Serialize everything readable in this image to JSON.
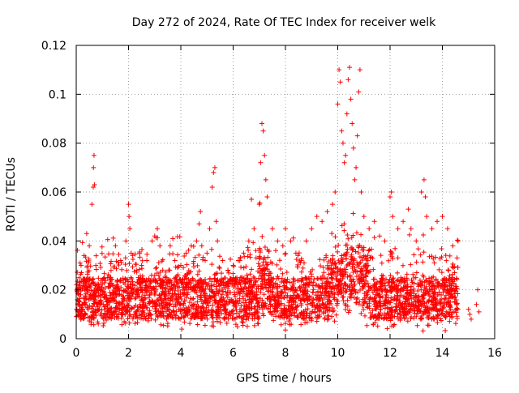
{
  "chart_data": {
    "type": "scatter",
    "title": "Day 272 of 2024, Rate Of TEC Index for receiver welk",
    "xlabel": "GPS time / hours",
    "ylabel": "ROTI / TECUs",
    "xlim": [
      0,
      16
    ],
    "ylim": [
      0,
      0.12
    ],
    "xticks": [
      0,
      2,
      4,
      6,
      8,
      10,
      12,
      14,
      16
    ],
    "xtick_labels": [
      "0",
      "2",
      "4",
      "6",
      "8",
      "10",
      "12",
      "14",
      "16"
    ],
    "yticks": [
      0,
      0.02,
      0.04,
      0.06,
      0.08,
      0.1,
      0.12
    ],
    "ytick_labels": [
      "0",
      "0.02",
      "0.04",
      "0.06",
      "0.08",
      "0.1",
      "0.12"
    ],
    "grid": true,
    "marker": "plus",
    "color": "#ff0000",
    "series": [
      {
        "name": "ROTI",
        "points": [
          [
            0.1,
            0.018
          ],
          [
            0.2,
            0.027
          ],
          [
            0.3,
            0.034
          ],
          [
            0.4,
            0.043
          ],
          [
            0.5,
            0.038
          ],
          [
            0.6,
            0.055
          ],
          [
            0.65,
            0.062
          ],
          [
            0.66,
            0.07
          ],
          [
            0.68,
            0.075
          ],
          [
            0.7,
            0.063
          ],
          [
            0.75,
            0.03
          ],
          [
            0.8,
            0.022
          ],
          [
            0.9,
            0.015
          ],
          [
            1.2,
            0.025
          ],
          [
            1.5,
            0.038
          ],
          [
            1.7,
            0.032
          ],
          [
            1.9,
            0.04
          ],
          [
            2.0,
            0.055
          ],
          [
            2.02,
            0.05
          ],
          [
            2.05,
            0.045
          ],
          [
            2.1,
            0.035
          ],
          [
            2.3,
            0.028
          ],
          [
            2.5,
            0.03
          ],
          [
            2.7,
            0.032
          ],
          [
            2.9,
            0.04
          ],
          [
            3.0,
            0.042
          ],
          [
            3.1,
            0.045
          ],
          [
            3.2,
            0.038
          ],
          [
            3.4,
            0.025
          ],
          [
            3.6,
            0.02
          ],
          [
            3.8,
            0.025
          ],
          [
            4.0,
            0.03
          ],
          [
            4.2,
            0.035
          ],
          [
            4.4,
            0.038
          ],
          [
            4.6,
            0.04
          ],
          [
            4.7,
            0.047
          ],
          [
            4.75,
            0.052
          ],
          [
            4.8,
            0.038
          ],
          [
            5.0,
            0.035
          ],
          [
            5.1,
            0.045
          ],
          [
            5.2,
            0.062
          ],
          [
            5.25,
            0.068
          ],
          [
            5.3,
            0.07
          ],
          [
            5.35,
            0.048
          ],
          [
            5.4,
            0.04
          ],
          [
            5.6,
            0.032
          ],
          [
            5.8,
            0.028
          ],
          [
            6.0,
            0.03
          ],
          [
            6.2,
            0.032
          ],
          [
            6.4,
            0.035
          ],
          [
            6.6,
            0.04
          ],
          [
            6.7,
            0.057
          ],
          [
            6.8,
            0.045
          ],
          [
            7.0,
            0.055
          ],
          [
            7.05,
            0.072
          ],
          [
            7.1,
            0.088
          ],
          [
            7.15,
            0.085
          ],
          [
            7.2,
            0.075
          ],
          [
            7.25,
            0.065
          ],
          [
            7.3,
            0.058
          ],
          [
            7.5,
            0.045
          ],
          [
            7.7,
            0.04
          ],
          [
            7.9,
            0.038
          ],
          [
            8.0,
            0.045
          ],
          [
            8.2,
            0.04
          ],
          [
            8.4,
            0.035
          ],
          [
            8.6,
            0.032
          ],
          [
            8.8,
            0.04
          ],
          [
            9.0,
            0.045
          ],
          [
            9.2,
            0.05
          ],
          [
            9.4,
            0.048
          ],
          [
            9.6,
            0.052
          ],
          [
            9.8,
            0.055
          ],
          [
            9.9,
            0.06
          ],
          [
            10.0,
            0.096
          ],
          [
            10.05,
            0.11
          ],
          [
            10.1,
            0.105
          ],
          [
            10.15,
            0.085
          ],
          [
            10.2,
            0.08
          ],
          [
            10.25,
            0.072
          ],
          [
            10.3,
            0.075
          ],
          [
            10.35,
            0.092
          ],
          [
            10.4,
            0.106
          ],
          [
            10.45,
            0.111
          ],
          [
            10.5,
            0.098
          ],
          [
            10.55,
            0.088
          ],
          [
            10.6,
            0.078
          ],
          [
            10.65,
            0.065
          ],
          [
            10.7,
            0.07
          ],
          [
            10.75,
            0.083
          ],
          [
            10.8,
            0.101
          ],
          [
            10.85,
            0.11
          ],
          [
            10.9,
            0.06
          ],
          [
            11.0,
            0.05
          ],
          [
            11.2,
            0.045
          ],
          [
            11.4,
            0.048
          ],
          [
            11.6,
            0.042
          ],
          [
            11.8,
            0.04
          ],
          [
            12.0,
            0.058
          ],
          [
            12.05,
            0.06
          ],
          [
            12.1,
            0.05
          ],
          [
            12.3,
            0.045
          ],
          [
            12.5,
            0.048
          ],
          [
            12.7,
            0.053
          ],
          [
            12.8,
            0.045
          ],
          [
            13.0,
            0.04
          ],
          [
            13.2,
            0.06
          ],
          [
            13.3,
            0.065
          ],
          [
            13.35,
            0.058
          ],
          [
            13.4,
            0.05
          ],
          [
            13.6,
            0.045
          ],
          [
            13.8,
            0.048
          ],
          [
            14.0,
            0.05
          ],
          [
            14.2,
            0.045
          ],
          [
            14.4,
            0.038
          ],
          [
            14.6,
            0.04
          ],
          [
            15.0,
            0.012
          ],
          [
            15.05,
            0.01
          ],
          [
            15.1,
            0.008
          ],
          [
            15.3,
            0.014
          ],
          [
            15.35,
            0.02
          ],
          [
            15.4,
            0.011
          ]
        ]
      }
    ],
    "dense_band": {
      "description": "background density of points",
      "x_range": [
        0,
        14.6
      ],
      "y_typical": [
        0.008,
        0.025
      ]
    }
  }
}
